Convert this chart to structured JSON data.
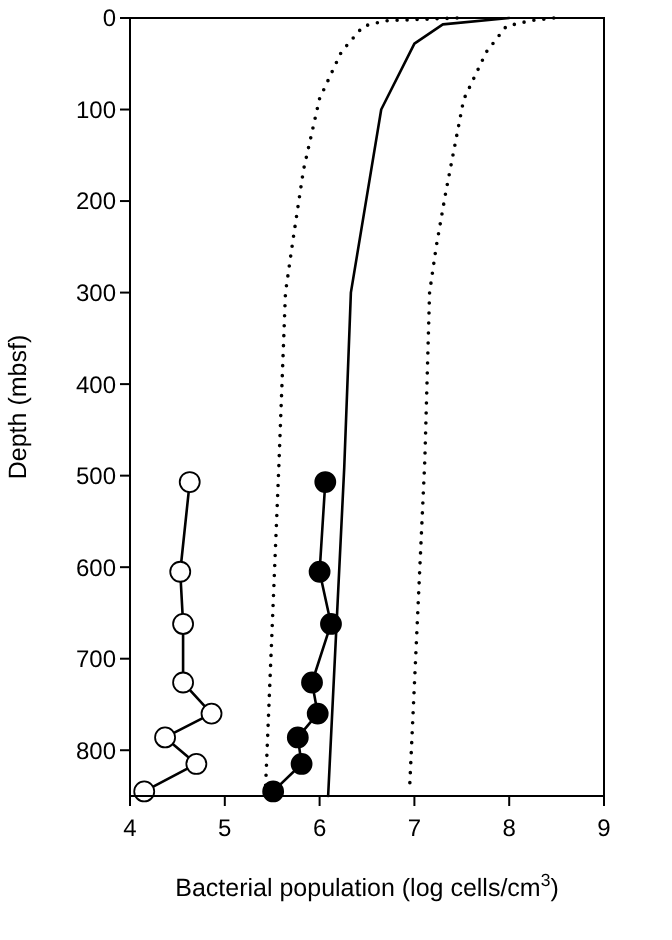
{
  "chart_data": {
    "type": "line",
    "xlabel": "Bacterial population (log cells/cm$^{3}$)",
    "ylabel": "Depth (mbsf)",
    "xlim": [
      4,
      9
    ],
    "xticks": [
      4,
      5,
      6,
      7,
      8,
      9
    ],
    "ylim": [
      850,
      0
    ],
    "yticks": [
      0,
      100,
      200,
      300,
      400,
      500,
      600,
      700,
      800
    ],
    "grid": false,
    "series": [
      {
        "color": "#000000",
        "line_style": "solid",
        "marker": "none",
        "x": [
          8.0,
          7.3,
          7.0,
          6.65,
          6.33,
          6.26,
          6.09
        ],
        "values": [
          0,
          7,
          28,
          100,
          300,
          491,
          850
        ]
      },
      {
        "color": "#000000",
        "line_style": "dotted",
        "marker": "none",
        "x": [
          7.45,
          6.7,
          6.46,
          6.23,
          6.0,
          5.83,
          5.72,
          5.64,
          5.57,
          5.43
        ],
        "values": [
          0,
          3,
          9,
          37,
          88,
          166,
          242,
          300,
          490,
          840
        ]
      },
      {
        "color": "#000000",
        "line_style": "dotted",
        "marker": "none",
        "x": [
          8.47,
          8.22,
          7.97,
          7.76,
          7.52,
          7.33,
          7.23,
          7.16,
          7.11,
          6.95
        ],
        "values": [
          0,
          3,
          9,
          37,
          89,
          191,
          250,
          300,
          483,
          840
        ]
      },
      {
        "color": "#ffffff",
        "line_style": "solid",
        "marker": "circle",
        "x": [
          4.63,
          4.53,
          4.56,
          4.56,
          4.86,
          4.37,
          4.7,
          4.15
        ],
        "values": [
          507,
          605,
          662,
          726,
          760,
          786,
          815,
          845
        ]
      },
      {
        "color": "#000000",
        "line_style": "solid",
        "marker": "circle",
        "x": [
          6.06,
          6.0,
          6.12,
          5.92,
          5.98,
          5.77,
          5.81,
          5.51
        ],
        "values": [
          507,
          605,
          662,
          726,
          760,
          786,
          815,
          845
        ]
      }
    ]
  }
}
